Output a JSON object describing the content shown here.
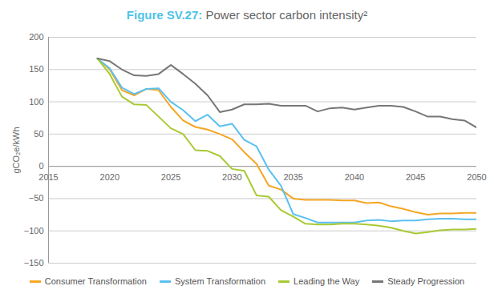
{
  "chart_data": {
    "type": "line",
    "title": "Figure SV.27: Power sector carbon intensity²",
    "y_label": "gCO₂e/kWh",
    "x": [
      2019,
      2020,
      2021,
      2022,
      2023,
      2024,
      2025,
      2026,
      2027,
      2028,
      2029,
      2030,
      2031,
      2032,
      2033,
      2034,
      2035,
      2036,
      2037,
      2038,
      2039,
      2040,
      2041,
      2042,
      2043,
      2044,
      2045,
      2046,
      2047,
      2048,
      2049,
      2050
    ],
    "series": [
      {
        "name": "Consumer Transformation",
        "color": "#f5a623",
        "values": [
          167,
          150,
          118,
          110,
          120,
          118,
          92,
          71,
          61,
          57,
          50,
          42,
          22,
          4,
          -30,
          -36,
          -50,
          -52,
          -52,
          -52,
          -53,
          -53,
          -57,
          -56,
          -62,
          -66,
          -71,
          -75,
          -73,
          -73,
          -72,
          -72
        ]
      },
      {
        "name": "System Transformation",
        "color": "#5bc0f0",
        "values": [
          167,
          152,
          122,
          112,
          120,
          121,
          100,
          87,
          70,
          80,
          62,
          66,
          41,
          31,
          -5,
          -30,
          -74,
          -80,
          -87,
          -87,
          -87,
          -87,
          -84,
          -83,
          -85,
          -84,
          -84,
          -82,
          -81,
          -81,
          -82,
          -82
        ]
      },
      {
        "name": "Leading the Way",
        "color": "#a8c934",
        "values": [
          167,
          143,
          108,
          96,
          95,
          77,
          59,
          50,
          25,
          24,
          16,
          -4,
          -7,
          -45,
          -47,
          -68,
          -78,
          -89,
          -90,
          -90,
          -89,
          -89,
          -90,
          -92,
          -95,
          -100,
          -104,
          -102,
          -99,
          -98,
          -98,
          -97
        ]
      },
      {
        "name": "Steady Progression",
        "color": "#777777",
        "values": [
          167,
          163,
          150,
          141,
          140,
          143,
          157,
          143,
          128,
          110,
          84,
          88,
          96,
          96,
          97,
          94,
          94,
          94,
          85,
          90,
          91,
          88,
          91,
          94,
          94,
          92,
          85,
          77,
          77,
          73,
          71,
          60
        ]
      }
    ],
    "xlim": [
      2015,
      2050
    ],
    "xticks": [
      2015,
      2020,
      2025,
      2030,
      2035,
      2040,
      2045,
      2050
    ],
    "ylim": [
      -150,
      200
    ],
    "yticks": [
      -150,
      -100,
      -50,
      0,
      50,
      100,
      150,
      200
    ],
    "grid": true,
    "legend": "bottom"
  }
}
